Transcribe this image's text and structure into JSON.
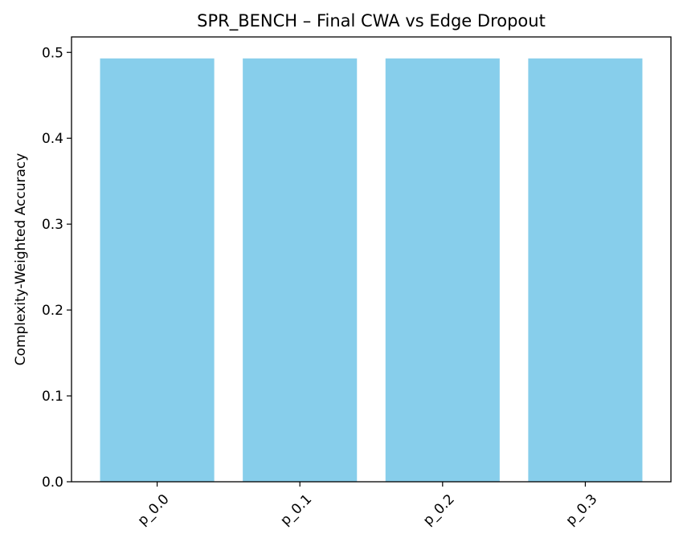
{
  "chart_data": {
    "type": "bar",
    "title": "SPR_BENCH – Final CWA vs Edge Dropout",
    "xlabel": "",
    "ylabel": "Complexity-Weighted Accuracy",
    "categories": [
      "p_0.0",
      "p_0.1",
      "p_0.2",
      "p_0.3"
    ],
    "values": [
      0.493,
      0.493,
      0.493,
      0.493
    ],
    "yticks": [
      "0.0",
      "0.1",
      "0.2",
      "0.3",
      "0.4",
      "0.5"
    ],
    "ylim": [
      0,
      0.518
    ],
    "grid": false,
    "legend": "none",
    "bar_color": "#87ceeb",
    "xtick_rotation_deg": 45
  }
}
